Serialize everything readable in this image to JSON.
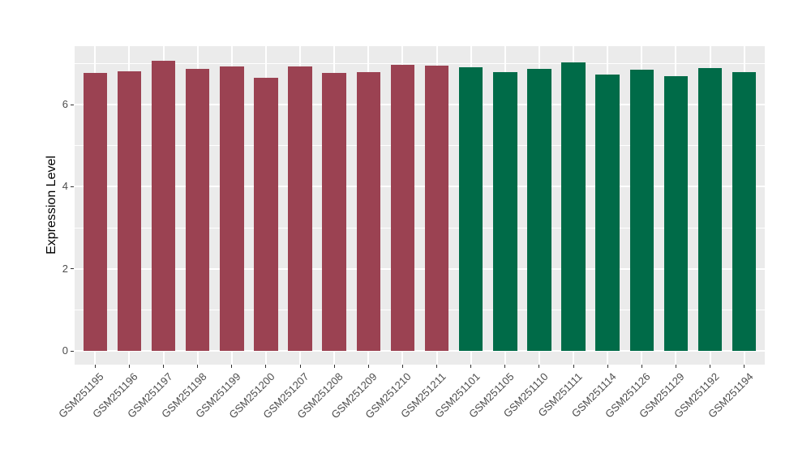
{
  "figure": {
    "background_color": "#ffffff",
    "panel_background_color": "#ebebeb",
    "gridline_color": "#ffffff",
    "axis_text_color": "#4d4d4d",
    "axis_tick_color": "#333333"
  },
  "chart_data": {
    "type": "bar",
    "title": "",
    "xlabel": "",
    "ylabel": "Expression Level",
    "legend": "none",
    "grid": true,
    "x_tick_label_rotation": 45,
    "categories": [
      "GSM251195",
      "GSM251196",
      "GSM251197",
      "GSM251198",
      "GSM251199",
      "GSM251200",
      "GSM251207",
      "GSM251208",
      "GSM251209",
      "GSM251210",
      "GSM251211",
      "GSM251101",
      "GSM251105",
      "GSM251110",
      "GSM251111",
      "GSM251114",
      "GSM251126",
      "GSM251129",
      "GSM251192",
      "GSM251194"
    ],
    "values": [
      6.76,
      6.81,
      7.07,
      6.86,
      6.92,
      6.66,
      6.92,
      6.76,
      6.79,
      6.96,
      6.95,
      6.91,
      6.79,
      6.86,
      7.02,
      6.72,
      6.84,
      6.7,
      6.88,
      6.79
    ],
    "groups": [
      "red",
      "red",
      "red",
      "red",
      "red",
      "red",
      "red",
      "red",
      "red",
      "red",
      "red",
      "green",
      "green",
      "green",
      "green",
      "green",
      "green",
      "green",
      "green",
      "green"
    ],
    "group_colors": {
      "red": "#9b4252",
      "green": "#006b48"
    },
    "yticks": [
      0,
      2,
      4,
      6
    ],
    "ytick_labels": [
      "0",
      "2",
      "4",
      "6"
    ],
    "yticks_minor": [
      1,
      3,
      5,
      7
    ],
    "ylim": [
      0,
      7.42
    ],
    "ylim_render": [
      -0.33,
      7.42
    ]
  }
}
